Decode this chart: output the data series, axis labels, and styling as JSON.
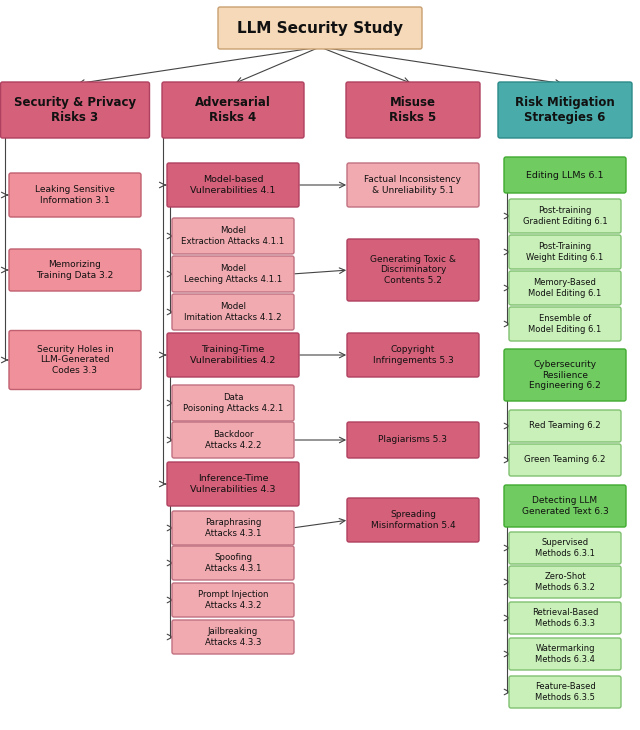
{
  "title": "LLM Security Study",
  "title_facecolor": "#f5d9b8",
  "title_edgecolor": "#c8a070",
  "columns": [
    {
      "label": "Security & Privacy\nRisks 3",
      "facecolor": "#d4607a",
      "edgecolor": "#b04060",
      "items": [
        {
          "text": "Leaking Sensitive\nInformation 3.1",
          "facecolor": "#f0909a",
          "edgecolor": "#c06070"
        },
        {
          "text": "Memorizing\nTraining Data 3.2",
          "facecolor": "#f0909a",
          "edgecolor": "#c06070"
        },
        {
          "text": "Security Holes in\nLLM-Generated\nCodes 3.3",
          "facecolor": "#f0909a",
          "edgecolor": "#c06070"
        }
      ]
    },
    {
      "label": "Adversarial\nRisks 4",
      "facecolor": "#d4607a",
      "edgecolor": "#b04060",
      "groups": [
        {
          "header": {
            "text": "Model-based\nVulnerabilities 4.1",
            "facecolor": "#d4607a",
            "edgecolor": "#b04060"
          },
          "items": [
            {
              "text": "Model\nExtraction Attacks 4.1.1",
              "facecolor": "#f0aab0",
              "edgecolor": "#c07080"
            },
            {
              "text": "Model\nLeeching Attacks 4.1.1",
              "facecolor": "#f0aab0",
              "edgecolor": "#c07080"
            },
            {
              "text": "Model\nImitation Attacks 4.1.2",
              "facecolor": "#f0aab0",
              "edgecolor": "#c07080"
            }
          ]
        },
        {
          "header": {
            "text": "Training-Time\nVulnerabilities 4.2",
            "facecolor": "#d4607a",
            "edgecolor": "#b04060"
          },
          "items": [
            {
              "text": "Data\nPoisoning Attacks 4.2.1",
              "facecolor": "#f0aab0",
              "edgecolor": "#c07080"
            },
            {
              "text": "Backdoor\nAttacks 4.2.2",
              "facecolor": "#f0aab0",
              "edgecolor": "#c07080"
            }
          ]
        },
        {
          "header": {
            "text": "Inference-Time\nVulnerabilities 4.3",
            "facecolor": "#d4607a",
            "edgecolor": "#b04060"
          },
          "items": [
            {
              "text": "Paraphrasing\nAttacks 4.3.1",
              "facecolor": "#f0aab0",
              "edgecolor": "#c07080"
            },
            {
              "text": "Spoofing\nAttacks 4.3.1",
              "facecolor": "#f0aab0",
              "edgecolor": "#c07080"
            },
            {
              "text": "Prompt Injection\nAttacks 4.3.2",
              "facecolor": "#f0aab0",
              "edgecolor": "#c07080"
            },
            {
              "text": "Jailbreaking\nAttacks 4.3.3",
              "facecolor": "#f0aab0",
              "edgecolor": "#c07080"
            }
          ]
        }
      ]
    },
    {
      "label": "Misuse\nRisks 5",
      "facecolor": "#d4607a",
      "edgecolor": "#b04060",
      "items": [
        {
          "text": "Factual Inconsistency\n& Unreliability 5.1",
          "facecolor": "#f0aab0",
          "edgecolor": "#c07080"
        },
        {
          "text": "Generating Toxic &\nDiscriminatory\nContents 5.2",
          "facecolor": "#d4607a",
          "edgecolor": "#b04060"
        },
        {
          "text": "Copyright\nInfringements 5.3",
          "facecolor": "#d4607a",
          "edgecolor": "#b04060"
        },
        {
          "text": "Plagiarisms 5.3",
          "facecolor": "#d4607a",
          "edgecolor": "#b04060"
        },
        {
          "text": "Spreading\nMisinformation 5.4",
          "facecolor": "#d4607a",
          "edgecolor": "#b04060"
        }
      ]
    },
    {
      "label": "Risk Mitigation\nStrategies 6",
      "facecolor": "#4aacaa",
      "edgecolor": "#2a8a88",
      "groups": [
        {
          "header": {
            "text": "Editing LLMs 6.1",
            "facecolor": "#70cc60",
            "edgecolor": "#40aa30"
          },
          "items": [
            {
              "text": "Post-training\nGradient Editing 6.1",
              "facecolor": "#c8f0b8",
              "edgecolor": "#80c070"
            },
            {
              "text": "Post-Training\nWeight Editing 6.1",
              "facecolor": "#c8f0b8",
              "edgecolor": "#80c070"
            },
            {
              "text": "Memory-Based\nModel Editing 6.1",
              "facecolor": "#c8f0b8",
              "edgecolor": "#80c070"
            },
            {
              "text": "Ensemble of\nModel Editing 6.1",
              "facecolor": "#c8f0b8",
              "edgecolor": "#80c070"
            }
          ]
        },
        {
          "header": {
            "text": "Cybersecurity\nResilience\nEngineering 6.2",
            "facecolor": "#70cc60",
            "edgecolor": "#40aa30"
          },
          "items": [
            {
              "text": "Red Teaming 6.2",
              "facecolor": "#c8f0b8",
              "edgecolor": "#80c070"
            },
            {
              "text": "Green Teaming 6.2",
              "facecolor": "#c8f0b8",
              "edgecolor": "#80c070"
            }
          ]
        },
        {
          "header": {
            "text": "Detecting LLM\nGenerated Text 6.3",
            "facecolor": "#70cc60",
            "edgecolor": "#40aa30"
          },
          "items": [
            {
              "text": "Supervised\nMethods 6.3.1",
              "facecolor": "#c8f0b8",
              "edgecolor": "#80c070"
            },
            {
              "text": "Zero-Shot\nMethods 6.3.2",
              "facecolor": "#c8f0b8",
              "edgecolor": "#80c070"
            },
            {
              "text": "Retrieval-Based\nMethods 6.3.3",
              "facecolor": "#c8f0b8",
              "edgecolor": "#80c070"
            },
            {
              "text": "Watermarking\nMethods 6.3.4",
              "facecolor": "#c8f0b8",
              "edgecolor": "#80c070"
            },
            {
              "text": "Feature-Based\nMethods 6.3.5",
              "facecolor": "#c8f0b8",
              "edgecolor": "#80c070"
            }
          ]
        }
      ]
    }
  ],
  "arrow_color": "#444444",
  "line_color": "#444444"
}
